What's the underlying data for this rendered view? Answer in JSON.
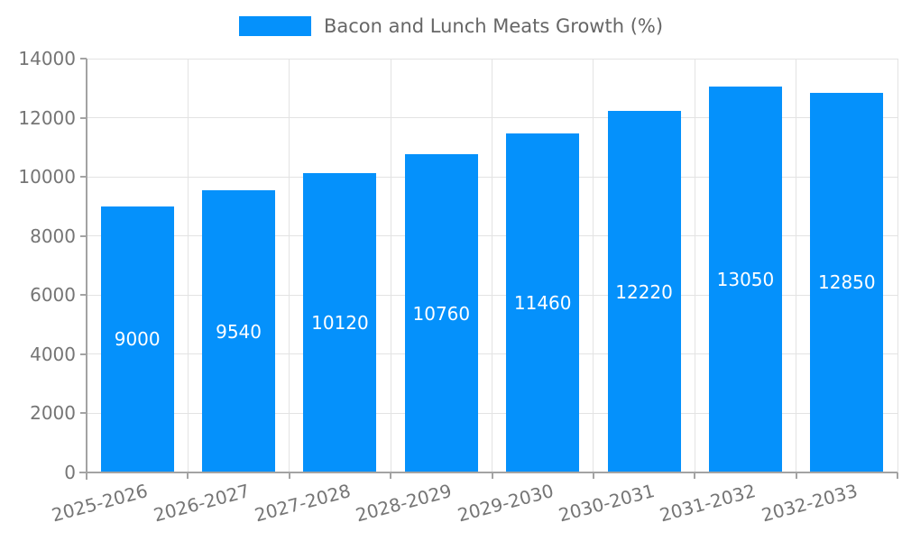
{
  "chart_data": {
    "type": "bar",
    "legend": "Bacon and Lunch Meats Growth (%)",
    "legend_position": "top-center",
    "categories": [
      "2025-2026",
      "2026-2027",
      "2027-2028",
      "2028-2029",
      "2029-2030",
      "2030-2031",
      "2031-2032",
      "2032-2033"
    ],
    "values": [
      9000,
      9540,
      10120,
      10760,
      11460,
      12220,
      13050,
      12850
    ],
    "title": "",
    "xlabel": "",
    "ylabel": "",
    "ylim": [
      0,
      14000
    ],
    "ytick_step": 2000,
    "yticks": [
      0,
      2000,
      4000,
      6000,
      8000,
      10000,
      12000,
      14000
    ],
    "grid": true,
    "x_label_rotation_deg": -15,
    "bar_width_fraction": 0.72,
    "colors": {
      "bar": "#0591fb",
      "bar_label": "#ffffff",
      "axis": "#a3a3a3",
      "gridline": "#e3e3e3",
      "tick_label": "#757575",
      "legend_text": "#666666",
      "background": "#ffffff"
    }
  }
}
